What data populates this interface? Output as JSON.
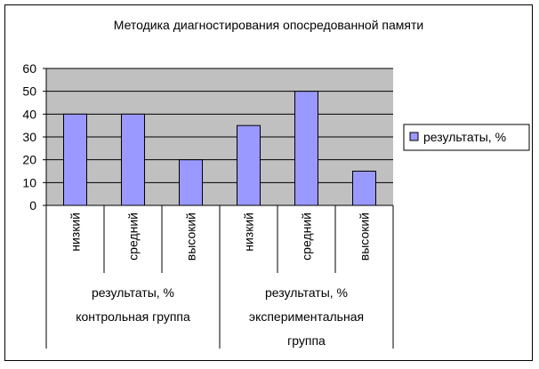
{
  "chart_data": {
    "type": "bar",
    "title": "Методика диагностирования опосредованной памяти",
    "categories": [
      "низкий",
      "средний",
      "высокий",
      "низкий",
      "средний",
      "высокий"
    ],
    "category_groups": [
      {
        "labels": [
          "результаты, %",
          "контрольная группа"
        ],
        "span": [
          0,
          3
        ]
      },
      {
        "labels": [
          "результаты, %",
          "экспериментальная",
          "группа"
        ],
        "span": [
          3,
          6
        ]
      }
    ],
    "series": [
      {
        "name": "результаты, %",
        "values": [
          40,
          40,
          20,
          35,
          50,
          15
        ],
        "color": "#9999ff"
      }
    ],
    "ylim": [
      0,
      60
    ],
    "yticks": [
      0,
      10,
      20,
      30,
      40,
      50,
      60
    ],
    "plot_background": "#c0c0c0",
    "grid": true,
    "legend_position": "right"
  }
}
